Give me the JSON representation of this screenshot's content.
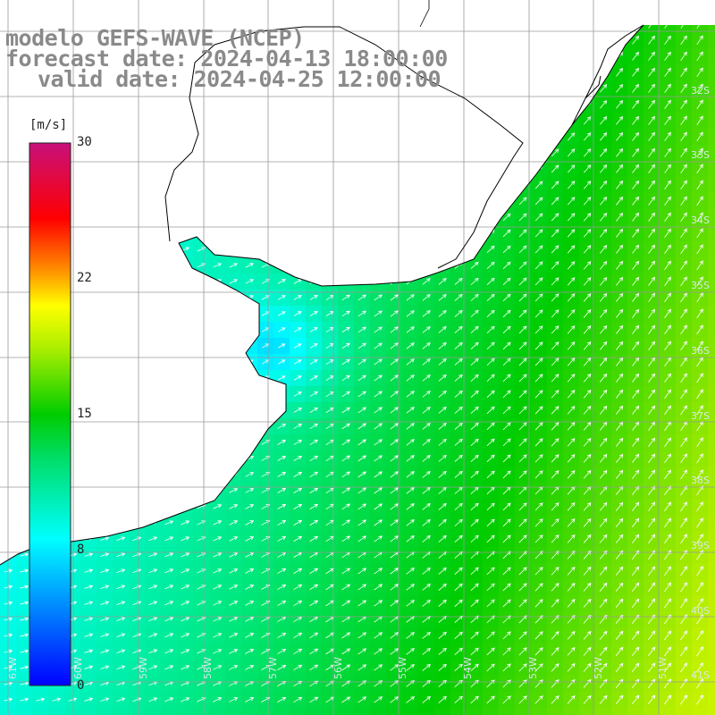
{
  "title": {
    "line1": "modelo GEFS-WAVE (NCEP)",
    "line2": "forecast date: 2024-04-13 18:00:00",
    "line3": "valid date: 2024-04-25 12:00:00"
  },
  "colorbar": {
    "unit": "[m/s]",
    "ticks": [
      "30",
      "22",
      "15",
      "8",
      "0"
    ],
    "range": [
      0,
      30
    ]
  },
  "grid_labels": {
    "lat": [
      "32S",
      "33S",
      "34S",
      "35S",
      "36S",
      "37S",
      "38S",
      "39S",
      "40S",
      "41S"
    ],
    "lon": [
      "61W",
      "60W",
      "59W",
      "58W",
      "57W",
      "56W",
      "55W",
      "54W",
      "53W",
      "52W",
      "51W"
    ]
  },
  "colors": {
    "land": "#ffffff",
    "coastline": "#000000",
    "gridline": "#9a9a9a",
    "title_text": "#8a8a8a",
    "arrow": "#ffffff"
  },
  "legend_colors": [
    "#0000ff",
    "#00ffff",
    "#00cc00",
    "#ffff00",
    "#ff0000",
    "#c8107a"
  ]
}
